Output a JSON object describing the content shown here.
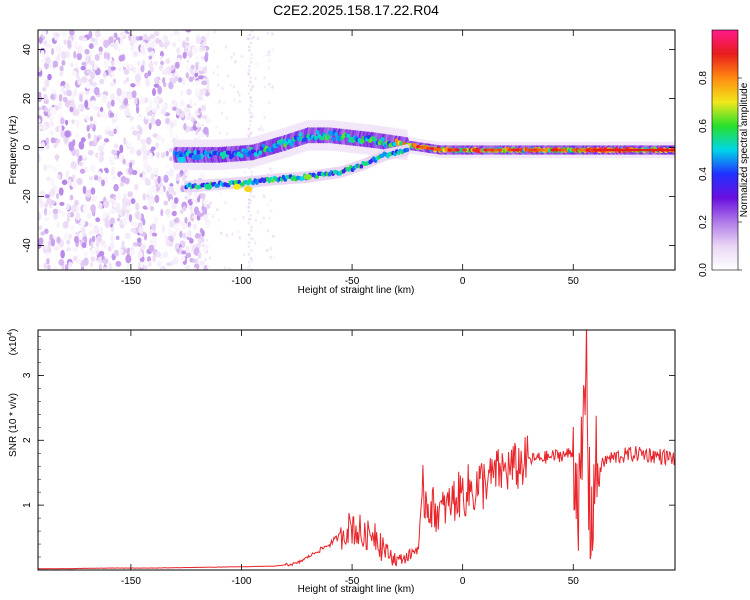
{
  "title": "C2E2.2025.158.17.22.R04",
  "colors": {
    "snr_line": "#e8252a",
    "colorbar_stops": [
      "#ffffff",
      "#e9d6f5",
      "#b07ae8",
      "#6a10e0",
      "#2030ff",
      "#00d6e8",
      "#27e02a",
      "#f2e81c",
      "#ff8a10",
      "#e81c1c",
      "#ff1a8a"
    ]
  },
  "chart_data": [
    {
      "type": "heatmap",
      "xlabel": "Height of straight line (km)",
      "ylabel": "Frequency (Hz)",
      "xlim": [
        -192,
        96
      ],
      "ylim": [
        -50,
        48
      ],
      "xticks": [
        -150,
        -100,
        -50,
        0,
        50
      ],
      "yticks": [
        -40,
        -20,
        0,
        20,
        40
      ],
      "colorbar": {
        "label": "Normalized spectral amplitude",
        "range": [
          0,
          1
        ],
        "ticks": [
          0.0,
          0.2,
          0.4,
          0.6,
          0.8
        ]
      },
      "features": {
        "noise_region_x": [
          -192,
          -125
        ],
        "upper_branch": [
          [
            -128,
            -3
          ],
          [
            -110,
            -3
          ],
          [
            -95,
            -2
          ],
          [
            -80,
            2
          ],
          [
            -70,
            5
          ],
          [
            -60,
            5
          ],
          [
            -50,
            4
          ],
          [
            -40,
            3
          ],
          [
            -25,
            1
          ],
          [
            -10,
            -1
          ],
          [
            0,
            -1
          ],
          [
            20,
            -1
          ],
          [
            40,
            -1
          ],
          [
            60,
            -1
          ],
          [
            80,
            -1
          ],
          [
            96,
            -1
          ]
        ],
        "lower_branch": [
          [
            -125,
            -16
          ],
          [
            -110,
            -15
          ],
          [
            -95,
            -14
          ],
          [
            -85,
            -13
          ],
          [
            -70,
            -12
          ],
          [
            -55,
            -10
          ],
          [
            -45,
            -7
          ],
          [
            -35,
            -3
          ],
          [
            -25,
            -1
          ]
        ]
      }
    },
    {
      "type": "line",
      "xlabel": "Height of straight line (km)",
      "ylabel": "SNR (10 * v/v)",
      "y_multiplier_label": "(x10",
      "y_multiplier_exp": "4",
      "xlim": [
        -192,
        96
      ],
      "ylim": [
        0,
        3.7
      ],
      "xticks": [
        -150,
        -100,
        -50,
        0,
        50
      ],
      "yticks": [
        1,
        2,
        3
      ],
      "series": [
        {
          "x": [
            -192,
            -180,
            -160,
            -140,
            -120,
            -100,
            -85,
            -75,
            -70,
            -65,
            -60,
            -55,
            -50,
            -45,
            -40,
            -35,
            -30,
            -25,
            -20,
            -18,
            -15,
            -12,
            -10,
            -5,
            0,
            5,
            10,
            15,
            20,
            25,
            30,
            40,
            50,
            53,
            55,
            56,
            57,
            58,
            60,
            65,
            70,
            80,
            90,
            96
          ],
          "y": [
            0.02,
            0.02,
            0.03,
            0.03,
            0.04,
            0.05,
            0.06,
            0.1,
            0.2,
            0.3,
            0.4,
            0.55,
            0.7,
            0.5,
            0.6,
            0.3,
            0.15,
            0.2,
            0.35,
            1.2,
            1.0,
            0.9,
            0.9,
            1.05,
            1.2,
            1.25,
            1.35,
            1.5,
            1.55,
            1.6,
            1.7,
            1.75,
            1.8,
            1.0,
            2.4,
            3.3,
            1.2,
            0.7,
            1.5,
            1.7,
            1.75,
            1.8,
            1.75,
            1.72
          ]
        }
      ]
    }
  ]
}
